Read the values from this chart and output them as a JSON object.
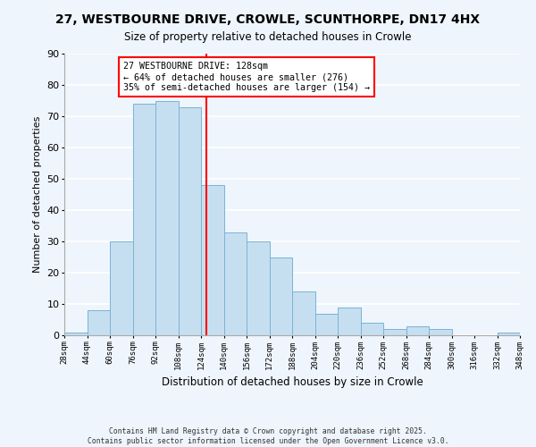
{
  "title": "27, WESTBOURNE DRIVE, CROWLE, SCUNTHORPE, DN17 4HX",
  "subtitle": "Size of property relative to detached houses in Crowle",
  "xlabel": "Distribution of detached houses by size in Crowle",
  "ylabel": "Number of detached properties",
  "bin_edges": [
    28,
    44,
    60,
    76,
    92,
    108,
    124,
    140,
    156,
    172,
    188,
    204,
    220,
    236,
    252,
    268,
    284,
    300,
    316,
    332,
    348
  ],
  "bar_heights": [
    1,
    8,
    30,
    74,
    75,
    73,
    48,
    33,
    30,
    25,
    14,
    7,
    9,
    4,
    2,
    3,
    2,
    0,
    0,
    1
  ],
  "bar_color": "#c6dff0",
  "bar_edge_color": "#7ab3d4",
  "vline_x": 128,
  "vline_color": "red",
  "annotation_lines": [
    "27 WESTBOURNE DRIVE: 128sqm",
    "← 64% of detached houses are smaller (276)",
    "35% of semi-detached houses are larger (154) →"
  ],
  "ylim": [
    0,
    90
  ],
  "yticks": [
    0,
    10,
    20,
    30,
    40,
    50,
    60,
    70,
    80,
    90
  ],
  "tick_labels": [
    "28sqm",
    "44sqm",
    "60sqm",
    "76sqm",
    "92sqm",
    "108sqm",
    "124sqm",
    "140sqm",
    "156sqm",
    "172sqm",
    "188sqm",
    "204sqm",
    "220sqm",
    "236sqm",
    "252sqm",
    "268sqm",
    "284sqm",
    "300sqm",
    "316sqm",
    "332sqm",
    "348sqm"
  ],
  "background_color": "#eef5fc",
  "grid_color": "#ffffff",
  "footer_line1": "Contains HM Land Registry data © Crown copyright and database right 2025.",
  "footer_line2": "Contains public sector information licensed under the Open Government Licence v3.0."
}
